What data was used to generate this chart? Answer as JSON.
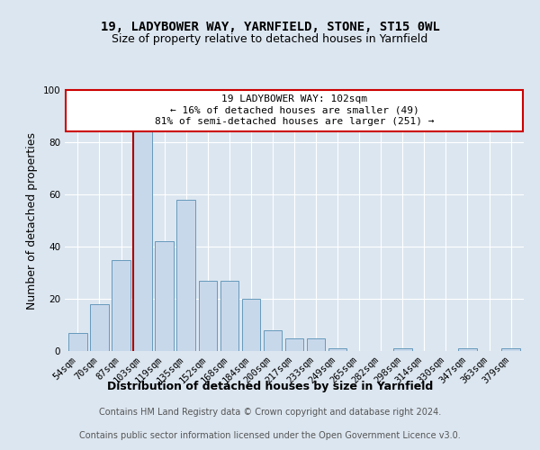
{
  "title": "19, LADYBOWER WAY, YARNFIELD, STONE, ST15 0WL",
  "subtitle": "Size of property relative to detached houses in Yarnfield",
  "xlabel": "Distribution of detached houses by size in Yarnfield",
  "ylabel": "Number of detached properties",
  "categories": [
    "54sqm",
    "70sqm",
    "87sqm",
    "103sqm",
    "119sqm",
    "135sqm",
    "152sqm",
    "168sqm",
    "184sqm",
    "200sqm",
    "217sqm",
    "233sqm",
    "249sqm",
    "265sqm",
    "282sqm",
    "298sqm",
    "314sqm",
    "330sqm",
    "347sqm",
    "363sqm",
    "379sqm"
  ],
  "values": [
    7,
    18,
    35,
    84,
    42,
    58,
    27,
    27,
    20,
    8,
    5,
    5,
    1,
    0,
    0,
    1,
    0,
    0,
    1,
    0,
    1
  ],
  "bar_color": "#c8d8eb",
  "bar_edge_color": "#6699bb",
  "highlight_index": 3,
  "red_line_color": "#aa0000",
  "annotation_line1": "19 LADYBOWER WAY: 102sqm",
  "annotation_line2": "← 16% of detached houses are smaller (49)",
  "annotation_line3": "81% of semi-detached houses are larger (251) →",
  "annotation_box_color": "#ffffff",
  "annotation_box_edge": "#cc0000",
  "ylim": [
    0,
    100
  ],
  "yticks": [
    0,
    20,
    40,
    60,
    80,
    100
  ],
  "footer_line1": "Contains HM Land Registry data © Crown copyright and database right 2024.",
  "footer_line2": "Contains public sector information licensed under the Open Government Licence v3.0.",
  "background_color": "#dce6f0",
  "plot_bg_color": "#dce6f0",
  "footer_bg_color": "#ffffff",
  "title_fontsize": 10,
  "subtitle_fontsize": 9,
  "axis_label_fontsize": 9,
  "tick_fontsize": 7.5,
  "annotation_fontsize": 8,
  "footer_fontsize": 7
}
